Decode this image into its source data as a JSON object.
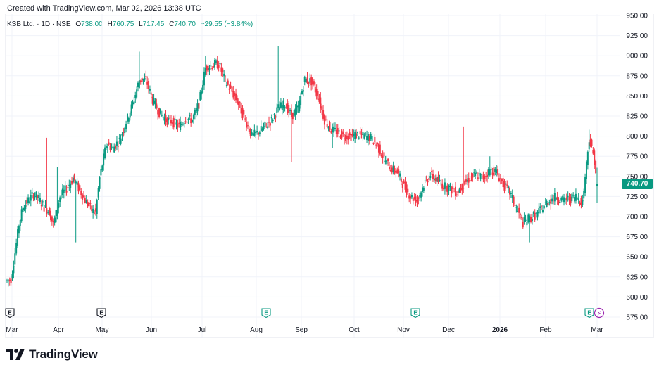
{
  "credit": "Created with TradingView.com, Mar 02, 2026 13:38 UTC",
  "legend": {
    "symbol": "KSB Ltd. · 1D · NSE",
    "open_label": "O",
    "open": "738.00",
    "high_label": "H",
    "high": "760.75",
    "low_label": "L",
    "low": "717.45",
    "close_label": "C",
    "close": "740.70",
    "change": "−29.55 (−3.84%)"
  },
  "last_price_label": "740.70",
  "brand": "TradingView",
  "colors": {
    "up": "#089981",
    "down": "#f23645",
    "grid": "#f0f3fa",
    "axis_text": "#131722",
    "event": "#089981",
    "dividend": "#9c27b0"
  },
  "chart_data": {
    "type": "candlestick",
    "y_ticks": [
      "575.00",
      "600.00",
      "625.00",
      "650.00",
      "675.00",
      "700.00",
      "725.00",
      "750.00",
      "775.00",
      "800.00",
      "825.00",
      "850.00",
      "875.00",
      "900.00",
      "925.00",
      "950.00"
    ],
    "ylim": [
      575,
      950
    ],
    "x_ticks": [
      {
        "label": "Mar",
        "bold": false
      },
      {
        "label": "Apr",
        "bold": false
      },
      {
        "label": "May",
        "bold": false
      },
      {
        "label": "Jun",
        "bold": false
      },
      {
        "label": "Jul",
        "bold": false
      },
      {
        "label": "Aug",
        "bold": false
      },
      {
        "label": "Sep",
        "bold": false
      },
      {
        "label": "Oct",
        "bold": false
      },
      {
        "label": "Nov",
        "bold": false
      },
      {
        "label": "Dec",
        "bold": false
      },
      {
        "label": "2026",
        "bold": true
      },
      {
        "label": "Feb",
        "bold": false
      },
      {
        "label": "Mar",
        "bold": false
      }
    ],
    "events": [
      {
        "type": "earnings",
        "glyph": "E",
        "style": "plain"
      },
      {
        "type": "earnings",
        "glyph": "E",
        "style": "plain"
      },
      {
        "type": "earnings",
        "glyph": "E",
        "style": "green"
      },
      {
        "type": "earnings",
        "glyph": "E",
        "style": "green"
      },
      {
        "type": "earnings",
        "glyph": "E",
        "style": "green"
      },
      {
        "type": "dividend",
        "glyph": "⚡",
        "style": "purple"
      }
    ],
    "last_price": 740.7,
    "anchors": [
      [
        0,
        620
      ],
      [
        3,
        622
      ],
      [
        6,
        655
      ],
      [
        9,
        690
      ],
      [
        12,
        712
      ],
      [
        15,
        718
      ],
      [
        20,
        728
      ],
      [
        24,
        722
      ],
      [
        28,
        712
      ],
      [
        32,
        706
      ],
      [
        35,
        690
      ],
      [
        40,
        725
      ],
      [
        45,
        735
      ],
      [
        50,
        748
      ],
      [
        55,
        732
      ],
      [
        60,
        718
      ],
      [
        64,
        708
      ],
      [
        67,
        705
      ],
      [
        70,
        748
      ],
      [
        75,
        790
      ],
      [
        80,
        785
      ],
      [
        85,
        795
      ],
      [
        90,
        818
      ],
      [
        95,
        840
      ],
      [
        100,
        870
      ],
      [
        105,
        870
      ],
      [
        110,
        845
      ],
      [
        115,
        830
      ],
      [
        120,
        820
      ],
      [
        125,
        818
      ],
      [
        130,
        812
      ],
      [
        135,
        822
      ],
      [
        140,
        820
      ],
      [
        145,
        840
      ],
      [
        150,
        885
      ],
      [
        155,
        888
      ],
      [
        160,
        890
      ],
      [
        165,
        868
      ],
      [
        170,
        855
      ],
      [
        175,
        840
      ],
      [
        180,
        820
      ],
      [
        185,
        800
      ],
      [
        190,
        805
      ],
      [
        195,
        812
      ],
      [
        200,
        820
      ],
      [
        205,
        835
      ],
      [
        210,
        840
      ],
      [
        215,
        825
      ],
      [
        220,
        835
      ],
      [
        225,
        870
      ],
      [
        230,
        868
      ],
      [
        235,
        850
      ],
      [
        240,
        820
      ],
      [
        245,
        808
      ],
      [
        250,
        805
      ],
      [
        255,
        800
      ],
      [
        260,
        800
      ],
      [
        265,
        802
      ],
      [
        270,
        800
      ],
      [
        275,
        798
      ],
      [
        280,
        788
      ],
      [
        285,
        772
      ],
      [
        290,
        760
      ],
      [
        295,
        755
      ],
      [
        300,
        738
      ],
      [
        305,
        725
      ],
      [
        310,
        720
      ],
      [
        315,
        740
      ],
      [
        320,
        752
      ],
      [
        325,
        745
      ],
      [
        330,
        738
      ],
      [
        335,
        735
      ],
      [
        340,
        730
      ],
      [
        345,
        740
      ],
      [
        350,
        748
      ],
      [
        355,
        752
      ],
      [
        360,
        748
      ],
      [
        365,
        758
      ],
      [
        370,
        755
      ],
      [
        375,
        740
      ],
      [
        380,
        730
      ],
      [
        385,
        710
      ],
      [
        390,
        692
      ],
      [
        395,
        698
      ],
      [
        400,
        702
      ],
      [
        405,
        712
      ],
      [
        410,
        720
      ],
      [
        415,
        725
      ],
      [
        420,
        720
      ],
      [
        425,
        722
      ],
      [
        430,
        725
      ],
      [
        435,
        718
      ],
      [
        440,
        798
      ],
      [
        444,
        770
      ],
      [
        446,
        741
      ]
    ],
    "spikes": [
      [
        30,
        "h",
        798
      ],
      [
        38,
        "h",
        762
      ],
      [
        52,
        "l",
        668
      ],
      [
        100,
        "h",
        905
      ],
      [
        150,
        "h",
        900
      ],
      [
        205,
        "h",
        912
      ],
      [
        215,
        "l",
        768
      ],
      [
        246,
        "l",
        785
      ],
      [
        345,
        "h",
        812
      ],
      [
        365,
        "h",
        775
      ],
      [
        395,
        "l",
        668
      ],
      [
        440,
        "h",
        808
      ]
    ]
  }
}
